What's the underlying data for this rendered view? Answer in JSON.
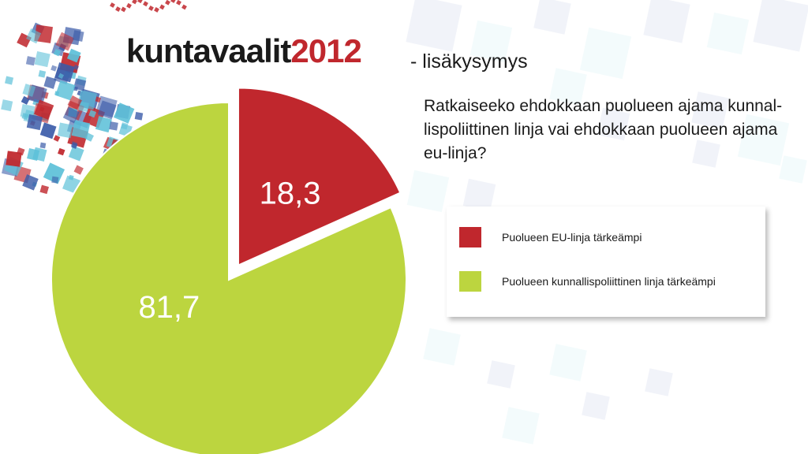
{
  "header": {
    "brand_text": "kuntavaalit",
    "brand_year": "2012",
    "subtitle": "- lisäkysymys",
    "question": "Ratkaiseeko ehdokkaan puolueen ajama kunnal-lispoliittinen linja vai ehdokkaan puolueen ajama eu-linja?"
  },
  "colors": {
    "red": "#c0272d",
    "green": "#bcd53f",
    "blue": "#3a5ba8",
    "cyan": "#5cc0d8"
  },
  "chart_data": {
    "type": "pie",
    "slices": [
      {
        "label": "Puolueen EU-linja tärkeämpi",
        "value": 18.3,
        "display": "18,3",
        "color": "#c0272d",
        "exploded": true
      },
      {
        "label": "Puolueen kunnallispoliittinen linja tärkeämpi",
        "value": 81.7,
        "display": "81,7",
        "color": "#bcd53f",
        "exploded": false
      }
    ],
    "legend_position": "right"
  }
}
